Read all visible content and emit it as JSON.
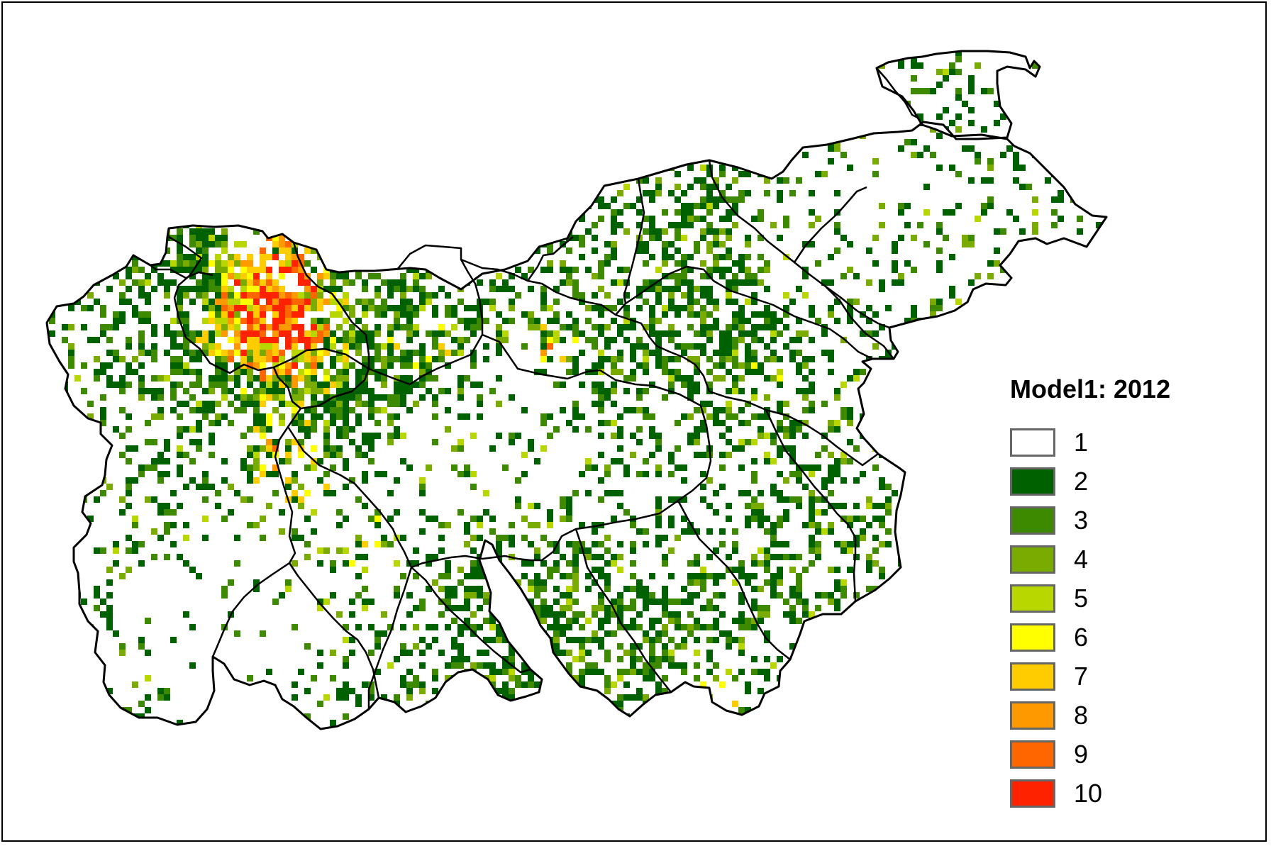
{
  "legend": {
    "title": "Model1: 2012",
    "classes": [
      {
        "label": "1",
        "color": "#FFFFFF"
      },
      {
        "label": "2",
        "color": "#006100"
      },
      {
        "label": "3",
        "color": "#3D8A00"
      },
      {
        "label": "4",
        "color": "#7AAB00"
      },
      {
        "label": "5",
        "color": "#B8D600"
      },
      {
        "label": "6",
        "color": "#FFFF00"
      },
      {
        "label": "7",
        "color": "#FFCC00"
      },
      {
        "label": "8",
        "color": "#FF9900"
      },
      {
        "label": "9",
        "color": "#FF6600"
      },
      {
        "label": "10",
        "color": "#FF2200"
      }
    ]
  }
}
